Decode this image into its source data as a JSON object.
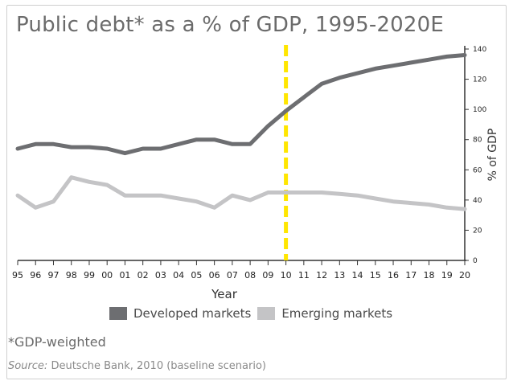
{
  "title": "Public debt* as a % of GDP, 1995-2020E",
  "footnote": "*GDP-weighted",
  "source_label": "Source:",
  "source_text": " Deutsche Bank, 2010 (baseline scenario)",
  "colors": {
    "developed": "#6d6e71",
    "emerging": "#c4c4c6",
    "forecast_line": "#ffe600",
    "axis": "#333333"
  },
  "chart_data": {
    "type": "line",
    "title": "Public debt* as a % of GDP, 1995-2020E",
    "xlabel": "Year",
    "ylabel": "% of GDP",
    "x": [
      "95",
      "96",
      "97",
      "98",
      "99",
      "00",
      "01",
      "02",
      "03",
      "04",
      "05",
      "06",
      "07",
      "08",
      "09",
      "10",
      "11",
      "12",
      "13",
      "14",
      "15",
      "16",
      "17",
      "18",
      "19",
      "20"
    ],
    "ylim": [
      0,
      140
    ],
    "yticks": [
      0,
      20,
      40,
      60,
      80,
      100,
      120,
      140
    ],
    "y_axis_side": "right",
    "forecast_marker_x": "10",
    "series": [
      {
        "name": "Developed markets",
        "values": [
          74,
          77,
          77,
          75,
          75,
          74,
          71,
          74,
          74,
          77,
          80,
          80,
          77,
          77,
          89,
          99,
          108,
          117,
          121,
          124,
          127,
          129,
          131,
          133,
          135,
          136
        ]
      },
      {
        "name": "Emerging markets",
        "values": [
          43,
          35,
          39,
          55,
          52,
          50,
          43,
          43,
          43,
          41,
          39,
          35,
          43,
          40,
          45,
          45,
          45,
          45,
          44,
          43,
          41,
          39,
          38,
          37,
          35,
          34
        ]
      }
    ],
    "grid": false,
    "legend_position": "bottom"
  }
}
